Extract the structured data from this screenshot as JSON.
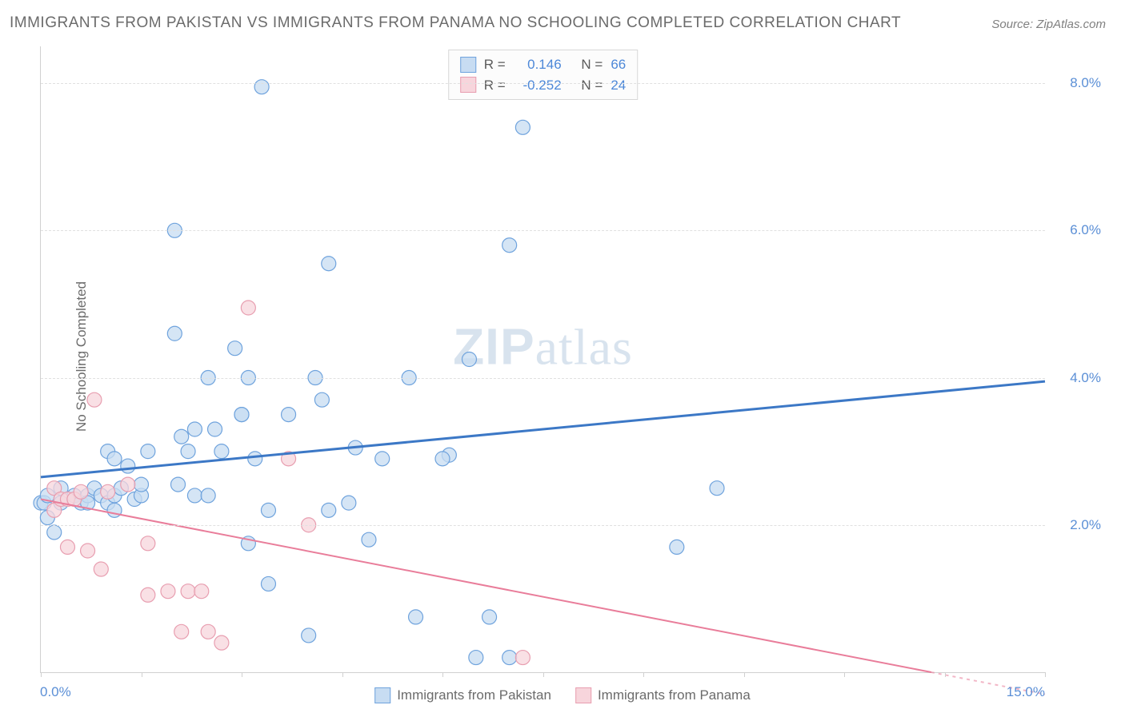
{
  "title": "IMMIGRANTS FROM PAKISTAN VS IMMIGRANTS FROM PANAMA NO SCHOOLING COMPLETED CORRELATION CHART",
  "source_label": "Source: ",
  "source_name": "ZipAtlas.com",
  "ylabel": "No Schooling Completed",
  "watermark_a": "ZIP",
  "watermark_b": "atlas",
  "chart": {
    "type": "scatter",
    "background_color": "#ffffff",
    "grid_color": "#e0e0e0",
    "axis_color": "#d0d0d0",
    "xlim": [
      0,
      15
    ],
    "ylim": [
      0,
      8.5
    ],
    "xtick_positions": [
      0,
      1.5,
      3,
      4.5,
      6,
      7.5,
      9,
      10.5,
      12,
      13.5,
      15
    ],
    "xtick_labels": {
      "first": "0.0%",
      "last": "15.0%"
    },
    "yticks": [
      2,
      4,
      6,
      8
    ],
    "ytick_labels": [
      "2.0%",
      "4.0%",
      "6.0%",
      "8.0%"
    ],
    "series": [
      {
        "name": "Immigrants from Pakistan",
        "marker_color_fill": "#c7dcf2",
        "marker_color_stroke": "#6fa3dd",
        "marker_radius": 9,
        "trend_color": "#3c78c6",
        "trend_width": 3,
        "trend_y_at_x0": 2.65,
        "trend_y_at_xmax": 3.95,
        "R": "0.146",
        "N": "66",
        "points": [
          [
            0.0,
            2.3
          ],
          [
            0.05,
            2.3
          ],
          [
            0.1,
            2.4
          ],
          [
            0.1,
            2.1
          ],
          [
            0.2,
            1.9
          ],
          [
            0.3,
            2.3
          ],
          [
            0.3,
            2.5
          ],
          [
            0.5,
            2.4
          ],
          [
            0.6,
            2.3
          ],
          [
            0.7,
            2.4
          ],
          [
            0.7,
            2.3
          ],
          [
            0.8,
            2.5
          ],
          [
            0.9,
            2.4
          ],
          [
            1.0,
            2.3
          ],
          [
            1.0,
            3.0
          ],
          [
            1.1,
            2.9
          ],
          [
            1.1,
            2.4
          ],
          [
            1.1,
            2.2
          ],
          [
            1.2,
            2.5
          ],
          [
            1.3,
            2.8
          ],
          [
            1.4,
            2.35
          ],
          [
            1.5,
            2.4
          ],
          [
            1.5,
            2.55
          ],
          [
            1.6,
            3.0
          ],
          [
            2.0,
            4.6
          ],
          [
            2.0,
            6.0
          ],
          [
            2.1,
            3.2
          ],
          [
            2.2,
            3.0
          ],
          [
            2.3,
            2.4
          ],
          [
            2.3,
            3.3
          ],
          [
            2.5,
            2.4
          ],
          [
            2.5,
            4.0
          ],
          [
            2.6,
            3.3
          ],
          [
            2.7,
            3.0
          ],
          [
            2.9,
            4.4
          ],
          [
            3.0,
            3.5
          ],
          [
            3.0,
            3.5
          ],
          [
            3.1,
            1.75
          ],
          [
            3.1,
            4.0
          ],
          [
            3.2,
            2.9
          ],
          [
            3.3,
            7.95
          ],
          [
            3.4,
            1.2
          ],
          [
            3.4,
            2.2
          ],
          [
            3.7,
            3.5
          ],
          [
            4.0,
            0.5
          ],
          [
            4.1,
            4.0
          ],
          [
            4.2,
            3.7
          ],
          [
            4.3,
            2.2
          ],
          [
            4.3,
            5.55
          ],
          [
            4.6,
            2.3
          ],
          [
            4.7,
            3.05
          ],
          [
            4.9,
            1.8
          ],
          [
            5.1,
            2.9
          ],
          [
            5.5,
            4.0
          ],
          [
            5.6,
            0.75
          ],
          [
            6.1,
            2.95
          ],
          [
            6.4,
            4.25
          ],
          [
            6.5,
            0.2
          ],
          [
            6.7,
            0.75
          ],
          [
            7.0,
            5.8
          ],
          [
            7.0,
            0.2
          ],
          [
            7.2,
            7.4
          ],
          [
            9.5,
            1.7
          ],
          [
            10.1,
            2.5
          ],
          [
            6.0,
            2.9
          ],
          [
            2.05,
            2.55
          ]
        ]
      },
      {
        "name": "Immigrants from Panama",
        "marker_color_fill": "#f7d5dc",
        "marker_color_stroke": "#e89eb0",
        "marker_radius": 9,
        "trend_color": "#e97d9a",
        "trend_width": 2,
        "trend_y_at_x0": 2.35,
        "trend_y_at_xmax": -0.3,
        "R": "-0.252",
        "N": "24",
        "points": [
          [
            0.2,
            2.5
          ],
          [
            0.2,
            2.2
          ],
          [
            0.3,
            2.35
          ],
          [
            0.4,
            2.35
          ],
          [
            0.4,
            1.7
          ],
          [
            0.5,
            2.35
          ],
          [
            0.6,
            2.45
          ],
          [
            0.7,
            1.65
          ],
          [
            0.8,
            3.7
          ],
          [
            0.9,
            1.4
          ],
          [
            1.0,
            2.45
          ],
          [
            1.3,
            2.55
          ],
          [
            1.6,
            1.05
          ],
          [
            1.6,
            1.75
          ],
          [
            1.9,
            1.1
          ],
          [
            2.1,
            0.55
          ],
          [
            2.2,
            1.1
          ],
          [
            2.4,
            1.1
          ],
          [
            2.5,
            0.55
          ],
          [
            2.7,
            0.4
          ],
          [
            3.1,
            4.95
          ],
          [
            3.7,
            2.9
          ],
          [
            4.0,
            2.0
          ],
          [
            7.2,
            0.2
          ]
        ]
      }
    ],
    "legend_top": {
      "R_label": "R =",
      "N_label": "N ="
    },
    "label_color": "#5b8fd6",
    "title_fontsize": 19,
    "label_fontsize": 17
  }
}
